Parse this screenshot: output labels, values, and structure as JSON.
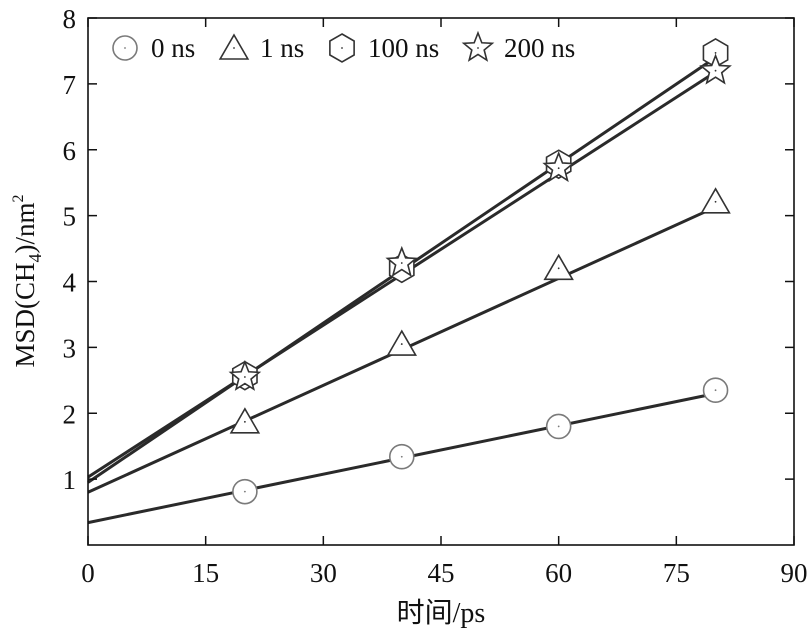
{
  "chart_data": {
    "type": "scatter",
    "title": "",
    "xlabel": "时间/ps",
    "ylabel": "MSD(CH4)/nm²",
    "ylabel_parts": {
      "main": "MSD(CH",
      "sub": "4",
      "tail": ")/nm",
      "sup": "2"
    },
    "xlim": [
      0,
      90
    ],
    "ylim": [
      0,
      8
    ],
    "x_ticks": [
      0,
      15,
      30,
      45,
      60,
      75,
      90
    ],
    "y_ticks": [
      1,
      2,
      3,
      4,
      5,
      6,
      7,
      8
    ],
    "grid": false,
    "legend_position": "top-left",
    "series": [
      {
        "name": "0 ns",
        "marker": "circle",
        "marker_color": "#7a7a7a",
        "x": [
          20,
          40,
          60,
          80
        ],
        "y": [
          0.81,
          1.34,
          1.8,
          2.35
        ],
        "fit_line": {
          "x": [
            0,
            80
          ],
          "y": [
            0.34,
            2.3
          ]
        }
      },
      {
        "name": "1 ns",
        "marker": "triangle",
        "marker_color": "#333333",
        "x": [
          20,
          40,
          60,
          80
        ],
        "y": [
          1.87,
          3.05,
          4.2,
          5.21
        ],
        "fit_line": {
          "x": [
            0,
            80
          ],
          "y": [
            0.8,
            5.13
          ]
        }
      },
      {
        "name": "100 ns",
        "marker": "hexagon",
        "marker_color": "#333333",
        "x": [
          20,
          40,
          60,
          80
        ],
        "y": [
          2.57,
          4.2,
          5.78,
          7.47
        ],
        "fit_line": {
          "x": [
            0,
            80
          ],
          "y": [
            0.95,
            7.4
          ]
        }
      },
      {
        "name": "200 ns",
        "marker": "star",
        "marker_color": "#333333",
        "x": [
          20,
          40,
          60,
          80
        ],
        "y": [
          2.55,
          4.28,
          5.72,
          7.2
        ],
        "fit_line": {
          "x": [
            0,
            80
          ],
          "y": [
            1.03,
            7.18
          ]
        }
      }
    ],
    "line_color": "#2a2a2a"
  }
}
